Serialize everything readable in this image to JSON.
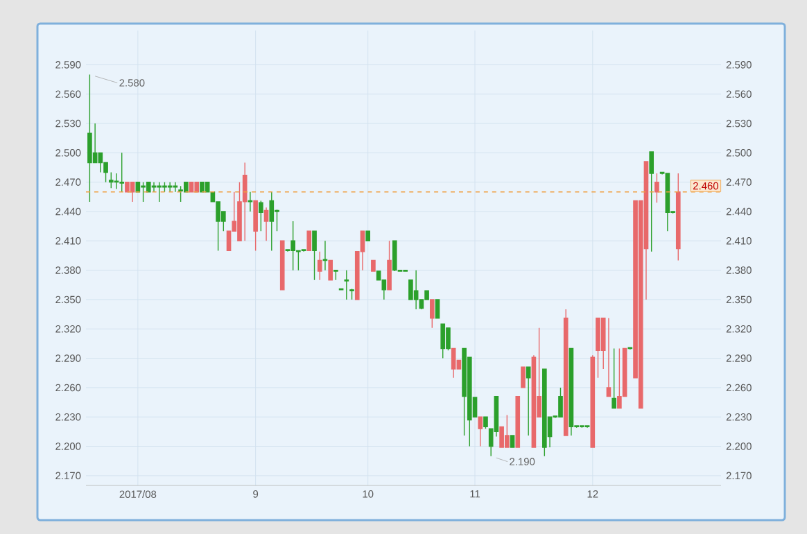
{
  "chart_data": {
    "type": "candlestick",
    "categories": [
      null,
      null,
      null,
      null,
      null,
      null,
      null,
      null,
      null,
      "2017/08",
      null,
      null,
      null,
      null,
      null,
      null,
      null,
      null,
      null,
      null,
      null,
      null,
      null,
      null,
      null,
      null,
      null,
      null,
      null,
      null,
      null,
      "9",
      null,
      null,
      null,
      null,
      null,
      null,
      null,
      null,
      null,
      null,
      null,
      null,
      null,
      null,
      null,
      null,
      null,
      null,
      null,
      null,
      "10",
      null,
      null,
      null,
      null,
      null,
      null,
      null,
      null,
      null,
      null,
      null,
      null,
      null,
      null,
      null,
      null,
      null,
      null,
      null,
      "11",
      null,
      null,
      null,
      null,
      null,
      null,
      null,
      null,
      null,
      null,
      null,
      null,
      null,
      null,
      null,
      null,
      null,
      null,
      null,
      null,
      null,
      "12",
      null,
      null,
      null,
      null,
      null,
      null,
      null,
      null,
      null,
      null,
      null,
      null,
      null,
      null,
      null,
      null
    ],
    "ohlc": [
      [
        2.52,
        2.58,
        2.45,
        2.49
      ],
      [
        2.5,
        2.53,
        2.49,
        2.49
      ],
      [
        2.5,
        2.5,
        2.48,
        2.49
      ],
      [
        2.49,
        2.49,
        2.47,
        2.48
      ],
      [
        2.472,
        2.48,
        2.464,
        2.47
      ],
      [
        2.471,
        2.479,
        2.463,
        2.47
      ],
      [
        2.47,
        2.5,
        2.46,
        2.469
      ],
      [
        2.46,
        2.47,
        2.46,
        2.47
      ],
      [
        2.46,
        2.47,
        2.45,
        2.47
      ],
      [
        2.47,
        2.47,
        2.46,
        2.46
      ],
      [
        2.466,
        2.47,
        2.45,
        2.465
      ],
      [
        2.47,
        2.47,
        2.46,
        2.46
      ],
      [
        2.466,
        2.47,
        2.46,
        2.465
      ],
      [
        2.466,
        2.47,
        2.45,
        2.465
      ],
      [
        2.466,
        2.47,
        2.46,
        2.465
      ],
      [
        2.466,
        2.47,
        2.46,
        2.465
      ],
      [
        2.466,
        2.47,
        2.46,
        2.465
      ],
      [
        2.462,
        2.466,
        2.45,
        2.461
      ],
      [
        2.47,
        2.47,
        2.46,
        2.46
      ],
      [
        2.46,
        2.47,
        2.46,
        2.47
      ],
      [
        2.46,
        2.47,
        2.46,
        2.47
      ],
      [
        2.47,
        2.47,
        2.46,
        2.46
      ],
      [
        2.47,
        2.47,
        2.46,
        2.46
      ],
      [
        2.46,
        2.46,
        2.45,
        2.45
      ],
      [
        2.45,
        2.45,
        2.4,
        2.43
      ],
      [
        2.44,
        2.44,
        2.42,
        2.43
      ],
      [
        2.4,
        2.42,
        2.4,
        2.42
      ],
      [
        2.42,
        2.46,
        2.42,
        2.43
      ],
      [
        2.41,
        2.47,
        2.41,
        2.45
      ],
      [
        2.45,
        2.49,
        2.41,
        2.477
      ],
      [
        2.451,
        2.46,
        2.44,
        2.45
      ],
      [
        2.42,
        2.451,
        2.4,
        2.451
      ],
      [
        2.449,
        2.451,
        2.42,
        2.439
      ],
      [
        2.43,
        2.444,
        2.41,
        2.441
      ],
      [
        2.451,
        2.46,
        2.4,
        2.43
      ],
      [
        2.441,
        2.442,
        2.42,
        2.44
      ],
      [
        2.36,
        2.41,
        2.36,
        2.41
      ],
      [
        2.401,
        2.401,
        2.399,
        2.4
      ],
      [
        2.41,
        2.43,
        2.38,
        2.4
      ],
      [
        2.4,
        2.4,
        2.38,
        2.399
      ],
      [
        2.401,
        2.401,
        2.399,
        2.4
      ],
      [
        2.4,
        2.42,
        2.4,
        2.42
      ],
      [
        2.42,
        2.42,
        2.37,
        2.4
      ],
      [
        2.379,
        2.399,
        2.37,
        2.39
      ],
      [
        2.391,
        2.41,
        2.38,
        2.39
      ],
      [
        2.37,
        2.39,
        2.37,
        2.39
      ],
      [
        2.38,
        2.38,
        2.37,
        2.379
      ],
      [
        2.361,
        2.361,
        2.36,
        2.36
      ],
      [
        2.37,
        2.38,
        2.35,
        2.369
      ],
      [
        2.36,
        2.361,
        2.35,
        2.359
      ],
      [
        2.35,
        2.399,
        2.35,
        2.399
      ],
      [
        2.399,
        2.42,
        2.38,
        2.42
      ],
      [
        2.42,
        2.42,
        2.41,
        2.41
      ],
      [
        2.379,
        2.39,
        2.379,
        2.39
      ],
      [
        2.379,
        2.379,
        2.37,
        2.37
      ],
      [
        2.37,
        2.37,
        2.35,
        2.36
      ],
      [
        2.36,
        2.41,
        2.36,
        2.39
      ],
      [
        2.41,
        2.41,
        2.379,
        2.38
      ],
      [
        2.38,
        2.38,
        2.379,
        2.379
      ],
      [
        2.38,
        2.38,
        2.379,
        2.379
      ],
      [
        2.37,
        2.37,
        2.35,
        2.35
      ],
      [
        2.359,
        2.38,
        2.34,
        2.35
      ],
      [
        2.35,
        2.35,
        2.34,
        2.341
      ],
      [
        2.359,
        2.359,
        2.35,
        2.35
      ],
      [
        2.331,
        2.35,
        2.321,
        2.35
      ],
      [
        2.35,
        2.35,
        2.331,
        2.331
      ],
      [
        2.325,
        2.325,
        2.29,
        2.3
      ],
      [
        2.321,
        2.321,
        2.298,
        2.3
      ],
      [
        2.279,
        2.3,
        2.27,
        2.3
      ],
      [
        2.279,
        2.288,
        2.279,
        2.288
      ],
      [
        2.3,
        2.3,
        2.211,
        2.251
      ],
      [
        2.291,
        2.291,
        2.2,
        2.227
      ],
      [
        2.25,
        2.25,
        2.23,
        2.23
      ],
      [
        2.218,
        2.23,
        2.2,
        2.23
      ],
      [
        2.23,
        2.23,
        2.218,
        2.22
      ],
      [
        2.218,
        2.218,
        2.19,
        2.2
      ],
      [
        2.251,
        2.251,
        2.21,
        2.215
      ],
      [
        2.199,
        2.22,
        2.199,
        2.22
      ],
      [
        2.199,
        2.232,
        2.199,
        2.211
      ],
      [
        2.211,
        2.211,
        2.199,
        2.199
      ],
      [
        2.199,
        2.251,
        2.199,
        2.251
      ],
      [
        2.26,
        2.281,
        2.26,
        2.281
      ],
      [
        2.281,
        2.281,
        2.211,
        2.27
      ],
      [
        2.199,
        2.293,
        2.199,
        2.291
      ],
      [
        2.23,
        2.321,
        2.23,
        2.251
      ],
      [
        2.279,
        2.279,
        2.19,
        2.199
      ],
      [
        2.23,
        2.23,
        2.199,
        2.21
      ],
      [
        2.231,
        2.231,
        2.229,
        2.23
      ],
      [
        2.251,
        2.26,
        2.23,
        2.23
      ],
      [
        2.211,
        2.34,
        2.211,
        2.331
      ],
      [
        2.3,
        2.3,
        2.211,
        2.22
      ],
      [
        2.221,
        2.221,
        2.219,
        2.22
      ],
      [
        2.221,
        2.221,
        2.219,
        2.22
      ],
      [
        2.221,
        2.221,
        2.219,
        2.22
      ],
      [
        2.199,
        2.293,
        2.199,
        2.291
      ],
      [
        2.298,
        2.331,
        2.27,
        2.331
      ],
      [
        2.298,
        2.331,
        2.279,
        2.331
      ],
      [
        2.251,
        2.331,
        2.251,
        2.26
      ],
      [
        2.249,
        2.3,
        2.239,
        2.239
      ],
      [
        2.239,
        2.3,
        2.239,
        2.251
      ],
      [
        2.251,
        2.3,
        2.251,
        2.3
      ],
      [
        2.301,
        2.301,
        2.299,
        2.3
      ],
      [
        2.27,
        2.451,
        2.27,
        2.451
      ],
      [
        2.239,
        2.451,
        2.239,
        2.451
      ],
      [
        2.402,
        2.491,
        2.35,
        2.491
      ],
      [
        2.501,
        2.501,
        2.399,
        2.479
      ],
      [
        2.46,
        2.479,
        2.449,
        2.47
      ],
      [
        2.48,
        2.48,
        2.478,
        2.479
      ],
      [
        2.479,
        2.479,
        2.42,
        2.439
      ],
      [
        2.44,
        2.44,
        2.438,
        2.439
      ],
      [
        2.402,
        2.479,
        2.39,
        2.46
      ]
    ],
    "colors": [
      "#2ca02c",
      "#2ca02c",
      "#2ca02c",
      "#2ca02c",
      "#2ca02c",
      "#2ca02c",
      "#2ca02c",
      "#e8696b",
      "#e8696b",
      "#2ca02c",
      "#2ca02c",
      "#2ca02c",
      "#2ca02c",
      "#2ca02c",
      "#2ca02c",
      "#2ca02c",
      "#2ca02c",
      "#2ca02c",
      "#2ca02c",
      "#e8696b",
      "#e8696b",
      "#2ca02c",
      "#2ca02c",
      "#2ca02c",
      "#2ca02c",
      "#2ca02c",
      "#e8696b",
      "#e8696b",
      "#e8696b",
      "#e8696b",
      "#2ca02c",
      "#e8696b",
      "#2ca02c",
      "#e8696b",
      "#2ca02c",
      "#2ca02c",
      "#e8696b",
      "#2ca02c",
      "#2ca02c",
      "#2ca02c",
      "#2ca02c",
      "#e8696b",
      "#2ca02c",
      "#e8696b",
      "#2ca02c",
      "#e8696b",
      "#2ca02c",
      "#2ca02c",
      "#2ca02c",
      "#2ca02c",
      "#e8696b",
      "#e8696b",
      "#2ca02c",
      "#e8696b",
      "#2ca02c",
      "#2ca02c",
      "#e8696b",
      "#2ca02c",
      "#2ca02c",
      "#2ca02c",
      "#2ca02c",
      "#2ca02c",
      "#2ca02c",
      "#2ca02c",
      "#e8696b",
      "#2ca02c",
      "#2ca02c",
      "#2ca02c",
      "#e8696b",
      "#e8696b",
      "#2ca02c",
      "#2ca02c",
      "#2ca02c",
      "#e8696b",
      "#2ca02c",
      "#2ca02c",
      "#2ca02c",
      "#e8696b",
      "#e8696b",
      "#2ca02c",
      "#e8696b",
      "#e8696b",
      "#2ca02c",
      "#e8696b",
      "#e8696b",
      "#2ca02c",
      "#2ca02c",
      "#2ca02c",
      "#2ca02c",
      "#e8696b",
      "#2ca02c",
      "#2ca02c",
      "#2ca02c",
      "#2ca02c",
      "#e8696b",
      "#e8696b",
      "#e8696b",
      "#e8696b",
      "#2ca02c",
      "#e8696b",
      "#e8696b",
      "#2ca02c",
      "#e8696b",
      "#e8696b",
      "#e8696b",
      "#2ca02c",
      "#e8696b",
      "#2ca02c",
      "#2ca02c",
      "#2ca02c",
      "#e8696b"
    ],
    "ylim": [
      2.16,
      2.625
    ],
    "yticks": [
      {
        "value": 2.17,
        "label": "2.170"
      },
      {
        "value": 2.2,
        "label": "2.200"
      },
      {
        "value": 2.23,
        "label": "2.230"
      },
      {
        "value": 2.26,
        "label": "2.260"
      },
      {
        "value": 2.29,
        "label": "2.290"
      },
      {
        "value": 2.32,
        "label": "2.320"
      },
      {
        "value": 2.35,
        "label": "2.350"
      },
      {
        "value": 2.38,
        "label": "2.380"
      },
      {
        "value": 2.41,
        "label": "2.410"
      },
      {
        "value": 2.44,
        "label": "2.440"
      },
      {
        "value": 2.47,
        "label": "2.470"
      },
      {
        "value": 2.5,
        "label": "2.500"
      },
      {
        "value": 2.53,
        "label": "2.530"
      },
      {
        "value": 2.56,
        "label": "2.560"
      },
      {
        "value": 2.59,
        "label": "2.590"
      }
    ],
    "y2lim": [
      2.16,
      2.625
    ],
    "y2ticks": [
      {
        "value": 2.17,
        "label": "2.170"
      },
      {
        "value": 2.2,
        "label": "2.200"
      },
      {
        "value": 2.23,
        "label": "2.230"
      },
      {
        "value": 2.26,
        "label": "2.260"
      },
      {
        "value": 2.29,
        "label": "2.290"
      },
      {
        "value": 2.32,
        "label": "2.320"
      },
      {
        "value": 2.35,
        "label": "2.350"
      },
      {
        "value": 2.38,
        "label": "2.380"
      },
      {
        "value": 2.41,
        "label": "2.410"
      },
      {
        "value": 2.44,
        "label": "2.440"
      },
      {
        "value": 2.47,
        "label": "2.470"
      },
      {
        "value": 2.5,
        "label": "2.500"
      },
      {
        "value": 2.53,
        "label": "2.530"
      },
      {
        "value": 2.56,
        "label": "2.560"
      },
      {
        "value": 2.59,
        "label": "2.590"
      }
    ],
    "grid": true,
    "ref_lines": [
      {
        "axis": "y",
        "value": 2.46,
        "label": "2.460",
        "color": "#f0a040",
        "line_style": "dashed"
      }
    ],
    "annotations": [
      "2.580",
      "2.190"
    ]
  }
}
